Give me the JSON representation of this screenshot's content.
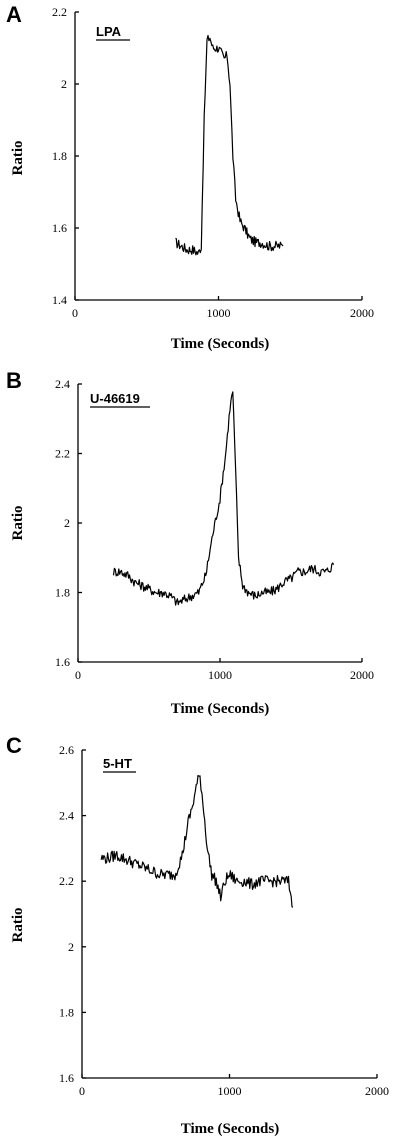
{
  "figure": {
    "shared_xlabel": "Time (Seconds)",
    "shared_ylabel": "Ratio"
  },
  "chart_data": [
    {
      "type": "line",
      "panel": "A",
      "label": "LPA",
      "xlabel": "Time (Seconds)",
      "ylabel": "Ratio",
      "xlim": [
        0,
        2000
      ],
      "ylim": [
        1.4,
        2.2
      ],
      "xticks": [
        "0",
        "1000",
        "2000"
      ],
      "yticks": [
        "1.4",
        "1.6",
        "1.8",
        "2",
        "2.2"
      ],
      "series": [
        {
          "x": [
            700,
            740,
            780,
            820,
            860,
            880,
            900,
            920,
            940,
            960,
            1000,
            1040,
            1060,
            1080,
            1100,
            1120,
            1150,
            1180,
            1220,
            1260,
            1300,
            1350,
            1400,
            1450
          ],
          "y": [
            1.56,
            1.55,
            1.54,
            1.54,
            1.53,
            1.55,
            1.9,
            2.12,
            2.13,
            2.1,
            2.1,
            2.07,
            2.08,
            2.0,
            1.8,
            1.68,
            1.62,
            1.6,
            1.57,
            1.56,
            1.56,
            1.55,
            1.55,
            1.55
          ]
        }
      ]
    },
    {
      "type": "line",
      "panel": "B",
      "label": "U-46619",
      "xlabel": "Time (Seconds)",
      "ylabel": "Ratio",
      "xlim": [
        0,
        2000
      ],
      "ylim": [
        1.6,
        2.4
      ],
      "xticks": [
        "0",
        "1000",
        "2000"
      ],
      "yticks": [
        "1.6",
        "1.8",
        "2",
        "2.2",
        "2.4"
      ],
      "series": [
        {
          "x": [
            250,
            300,
            350,
            400,
            450,
            500,
            550,
            600,
            650,
            700,
            750,
            800,
            850,
            900,
            950,
            1000,
            1040,
            1070,
            1090,
            1110,
            1130,
            1160,
            1200,
            1250,
            1300,
            1350,
            1400,
            1450,
            1500,
            1550,
            1600,
            1650,
            1700,
            1750,
            1800
          ],
          "y": [
            1.86,
            1.86,
            1.85,
            1.83,
            1.82,
            1.81,
            1.8,
            1.8,
            1.79,
            1.77,
            1.78,
            1.79,
            1.8,
            1.85,
            1.97,
            2.07,
            2.2,
            2.33,
            2.38,
            2.15,
            1.9,
            1.82,
            1.8,
            1.79,
            1.8,
            1.8,
            1.81,
            1.83,
            1.84,
            1.86,
            1.86,
            1.87,
            1.86,
            1.86,
            1.88
          ]
        }
      ]
    },
    {
      "type": "line",
      "panel": "C",
      "label": "5-HT",
      "xlabel": "Time (Seconds)",
      "ylabel": "Ratio",
      "xlim": [
        0,
        2000
      ],
      "ylim": [
        1.6,
        2.6
      ],
      "xticks": [
        "0",
        "1000",
        "2000"
      ],
      "yticks": [
        "1.6",
        "1.8",
        "2",
        "2.2",
        "2.4",
        "2.6"
      ],
      "series": [
        {
          "x": [
            130,
            180,
            230,
            280,
            330,
            380,
            430,
            480,
            530,
            580,
            630,
            680,
            720,
            750,
            780,
            800,
            820,
            850,
            880,
            910,
            940,
            970,
            1000,
            1050,
            1100,
            1150,
            1200,
            1250,
            1300,
            1350,
            1400,
            1430
          ],
          "y": [
            2.27,
            2.27,
            2.28,
            2.27,
            2.26,
            2.25,
            2.24,
            2.23,
            2.22,
            2.22,
            2.22,
            2.28,
            2.38,
            2.43,
            2.5,
            2.52,
            2.44,
            2.3,
            2.22,
            2.2,
            2.15,
            2.2,
            2.22,
            2.2,
            2.2,
            2.19,
            2.2,
            2.2,
            2.2,
            2.2,
            2.2,
            2.12
          ]
        }
      ]
    }
  ]
}
